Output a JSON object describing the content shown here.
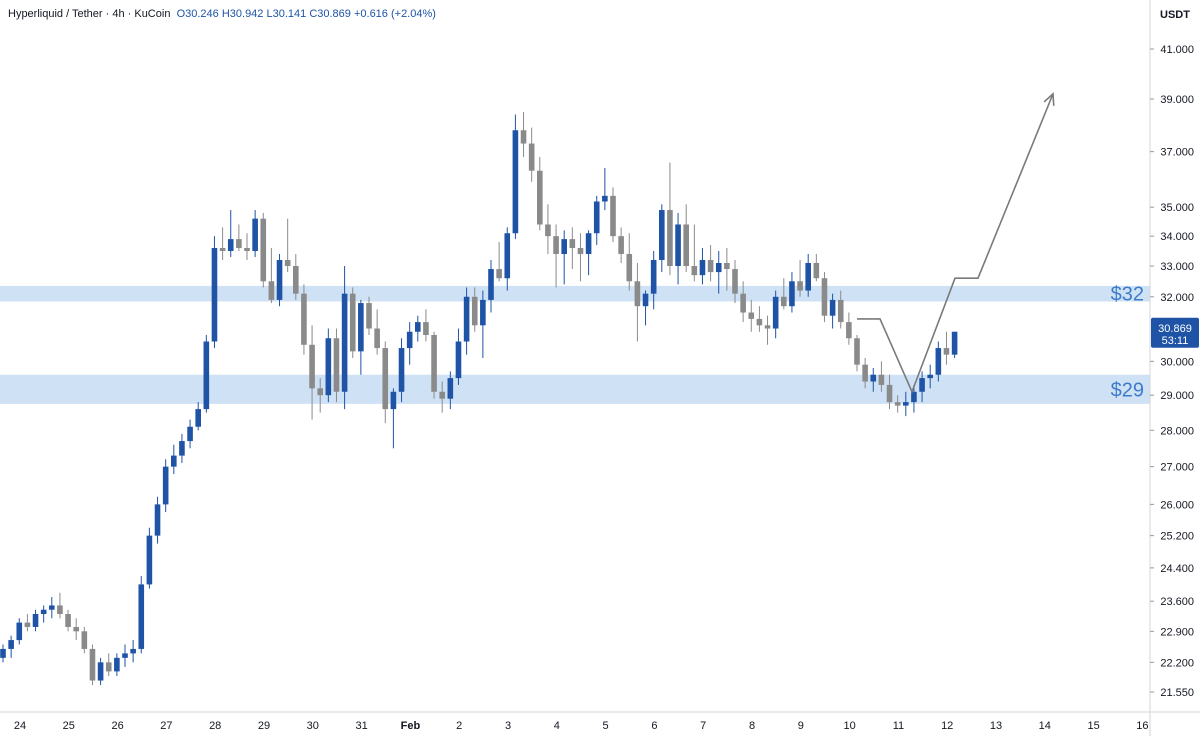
{
  "header": {
    "symbol": "Hyperliquid / Tether · 4h · KuCoin",
    "open": "O30.246",
    "high": "H30.942",
    "low": "L30.141",
    "close": "C30.869",
    "change": "+0.616 (+2.04%)"
  },
  "currency": "USDT",
  "price_box": {
    "price": "30.869",
    "countdown": "53:11"
  },
  "zones": [
    {
      "label": "$32",
      "from": 31.85,
      "to": 32.35
    },
    {
      "label": "$29",
      "from": 28.75,
      "to": 29.6
    }
  ],
  "chart_data": {
    "type": "candlestick",
    "x_labels": [
      "24",
      "25",
      "26",
      "27",
      "28",
      "29",
      "30",
      "31",
      "Feb",
      "2",
      "3",
      "4",
      "5",
      "6",
      "7",
      "8",
      "9",
      "10",
      "11",
      "12",
      "13",
      "14",
      "15",
      "16"
    ],
    "y_ticks": [
      "41.000",
      "39.000",
      "37.000",
      "35.000",
      "34.000",
      "33.000",
      "32.000",
      "30.000",
      "29.000",
      "28.000",
      "27.000",
      "26.000",
      "25.200",
      "24.400",
      "23.600",
      "22.900",
      "22.200",
      "21.550"
    ],
    "y_scale": "log",
    "colors": {
      "up": "#1e53a6",
      "down": "#8a8a8a",
      "zone": "#cfe1f5",
      "zone_text": "#3d7cc9",
      "projection": "#7a7a7a"
    },
    "candles": [
      [
        22.3,
        22.6,
        22.2,
        22.5
      ],
      [
        22.5,
        22.8,
        22.3,
        22.7
      ],
      [
        22.7,
        23.2,
        22.6,
        23.1
      ],
      [
        23.1,
        23.3,
        22.9,
        23.0
      ],
      [
        23.0,
        23.4,
        22.9,
        23.3
      ],
      [
        23.3,
        23.5,
        23.1,
        23.4
      ],
      [
        23.4,
        23.7,
        23.2,
        23.5
      ],
      [
        23.5,
        23.8,
        23.2,
        23.3
      ],
      [
        23.3,
        23.4,
        22.9,
        23.0
      ],
      [
        23.0,
        23.2,
        22.7,
        22.9
      ],
      [
        22.9,
        23.0,
        22.4,
        22.5
      ],
      [
        22.5,
        22.6,
        21.7,
        21.8
      ],
      [
        21.8,
        22.3,
        21.7,
        22.2
      ],
      [
        22.2,
        22.4,
        21.9,
        22.0
      ],
      [
        22.0,
        22.4,
        21.9,
        22.3
      ],
      [
        22.3,
        22.6,
        22.1,
        22.4
      ],
      [
        22.4,
        22.7,
        22.2,
        22.5
      ],
      [
        22.5,
        24.2,
        22.4,
        24.0
      ],
      [
        24.0,
        25.4,
        23.9,
        25.2
      ],
      [
        25.2,
        26.2,
        25.0,
        26.0
      ],
      [
        26.0,
        27.2,
        25.8,
        27.0
      ],
      [
        27.0,
        27.6,
        26.8,
        27.3
      ],
      [
        27.3,
        27.9,
        27.1,
        27.7
      ],
      [
        27.7,
        28.3,
        27.5,
        28.1
      ],
      [
        28.1,
        28.8,
        28.0,
        28.6
      ],
      [
        28.6,
        30.8,
        28.5,
        30.6
      ],
      [
        30.6,
        34.0,
        30.4,
        33.6
      ],
      [
        33.6,
        34.3,
        33.2,
        33.5
      ],
      [
        33.5,
        34.9,
        33.3,
        33.9
      ],
      [
        33.9,
        34.4,
        33.5,
        33.6
      ],
      [
        33.6,
        34.1,
        33.2,
        33.5
      ],
      [
        33.5,
        34.9,
        33.3,
        34.6
      ],
      [
        34.6,
        34.8,
        32.3,
        32.5
      ],
      [
        32.5,
        33.6,
        31.8,
        31.9
      ],
      [
        31.9,
        33.4,
        31.7,
        33.2
      ],
      [
        33.2,
        34.6,
        32.8,
        33.0
      ],
      [
        33.0,
        33.4,
        31.9,
        32.1
      ],
      [
        32.1,
        32.4,
        30.2,
        30.5
      ],
      [
        30.5,
        31.1,
        28.3,
        29.2
      ],
      [
        29.2,
        29.5,
        28.5,
        29.0
      ],
      [
        29.0,
        31.0,
        28.8,
        30.7
      ],
      [
        30.7,
        31.0,
        28.8,
        29.1
      ],
      [
        29.1,
        33.0,
        28.6,
        32.1
      ],
      [
        32.1,
        32.3,
        30.1,
        30.3
      ],
      [
        30.3,
        31.9,
        29.6,
        31.8
      ],
      [
        31.8,
        32.0,
        30.8,
        31.0
      ],
      [
        31.0,
        31.6,
        30.2,
        30.4
      ],
      [
        30.4,
        30.6,
        28.2,
        28.6
      ],
      [
        28.6,
        29.2,
        27.5,
        29.1
      ],
      [
        29.1,
        30.7,
        28.8,
        30.4
      ],
      [
        30.4,
        31.2,
        29.9,
        30.9
      ],
      [
        30.9,
        31.4,
        30.6,
        31.2
      ],
      [
        31.2,
        31.6,
        30.6,
        30.8
      ],
      [
        30.8,
        30.9,
        28.9,
        29.1
      ],
      [
        29.1,
        29.4,
        28.5,
        28.9
      ],
      [
        28.9,
        29.7,
        28.6,
        29.5
      ],
      [
        29.5,
        31.0,
        29.3,
        30.6
      ],
      [
        30.6,
        32.3,
        30.2,
        32.0
      ],
      [
        32.0,
        32.3,
        30.9,
        31.1
      ],
      [
        31.1,
        32.2,
        30.1,
        31.9
      ],
      [
        31.9,
        33.2,
        31.5,
        32.9
      ],
      [
        32.9,
        33.8,
        32.5,
        32.6
      ],
      [
        32.6,
        34.3,
        32.2,
        34.1
      ],
      [
        34.1,
        38.4,
        33.9,
        37.8
      ],
      [
        37.8,
        38.5,
        36.8,
        37.3
      ],
      [
        37.3,
        37.9,
        35.9,
        36.3
      ],
      [
        36.3,
        36.8,
        34.2,
        34.4
      ],
      [
        34.4,
        35.1,
        33.4,
        34.0
      ],
      [
        34.0,
        34.4,
        32.3,
        33.4
      ],
      [
        33.4,
        34.2,
        32.4,
        33.9
      ],
      [
        33.9,
        34.3,
        32.9,
        33.6
      ],
      [
        33.6,
        34.1,
        32.5,
        33.4
      ],
      [
        33.4,
        34.2,
        32.7,
        34.1
      ],
      [
        34.1,
        35.4,
        33.7,
        35.2
      ],
      [
        35.2,
        36.4,
        34.9,
        35.4
      ],
      [
        35.4,
        35.7,
        33.8,
        34.0
      ],
      [
        34.0,
        34.3,
        33.1,
        33.4
      ],
      [
        33.4,
        34.1,
        32.2,
        32.5
      ],
      [
        32.5,
        33.1,
        30.6,
        31.7
      ],
      [
        31.7,
        32.2,
        31.1,
        32.1
      ],
      [
        32.1,
        33.5,
        31.6,
        33.2
      ],
      [
        33.2,
        35.1,
        32.8,
        34.9
      ],
      [
        34.9,
        36.6,
        32.7,
        33.0
      ],
      [
        33.0,
        34.8,
        32.4,
        34.4
      ],
      [
        34.4,
        35.1,
        32.8,
        33.0
      ],
      [
        33.0,
        34.4,
        32.5,
        32.7
      ],
      [
        32.7,
        33.6,
        32.4,
        33.2
      ],
      [
        33.2,
        33.7,
        32.5,
        32.8
      ],
      [
        32.8,
        33.5,
        32.1,
        33.1
      ],
      [
        33.1,
        33.6,
        32.2,
        32.9
      ],
      [
        32.9,
        33.2,
        31.8,
        32.1
      ],
      [
        32.1,
        32.5,
        31.2,
        31.5
      ],
      [
        31.5,
        31.9,
        30.9,
        31.3
      ],
      [
        31.3,
        31.7,
        30.9,
        31.1
      ],
      [
        31.1,
        31.4,
        30.5,
        31.0
      ],
      [
        31.0,
        32.2,
        30.7,
        32.0
      ],
      [
        32.0,
        32.6,
        31.6,
        31.7
      ],
      [
        31.7,
        32.8,
        31.5,
        32.5
      ],
      [
        32.5,
        33.2,
        32.0,
        32.2
      ],
      [
        32.2,
        33.4,
        32.0,
        33.1
      ],
      [
        33.1,
        33.4,
        32.5,
        32.6
      ],
      [
        32.6,
        32.8,
        31.2,
        31.4
      ],
      [
        31.4,
        32.1,
        31.0,
        31.9
      ],
      [
        31.9,
        32.2,
        31.0,
        31.2
      ],
      [
        31.2,
        31.5,
        30.5,
        30.7
      ],
      [
        30.7,
        30.8,
        29.7,
        29.9
      ],
      [
        29.9,
        30.1,
        29.2,
        29.4
      ],
      [
        29.4,
        29.8,
        29.1,
        29.6
      ],
      [
        29.6,
        30.0,
        29.1,
        29.3
      ],
      [
        29.3,
        29.6,
        28.6,
        28.8
      ],
      [
        28.8,
        29.0,
        28.5,
        28.7
      ],
      [
        28.7,
        29.1,
        28.4,
        28.8
      ],
      [
        28.8,
        29.3,
        28.5,
        29.1
      ],
      [
        29.1,
        29.7,
        28.8,
        29.5
      ],
      [
        29.5,
        29.9,
        29.2,
        29.6
      ],
      [
        29.6,
        30.6,
        29.4,
        30.4
      ],
      [
        30.4,
        30.9,
        29.9,
        30.2
      ],
      [
        30.2,
        30.9,
        30.1,
        30.9
      ]
    ]
  }
}
